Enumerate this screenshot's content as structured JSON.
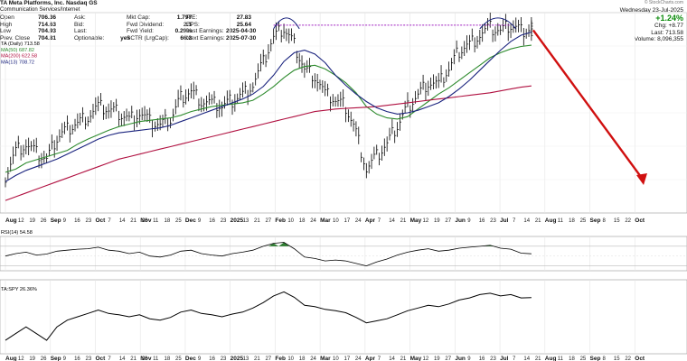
{
  "header": {
    "title": "TA Meta Platforms, Inc. Nasdaq GS",
    "subtitle": "Communication Services/Internet",
    "col1": [
      {
        "k": "Open",
        "v": "706.36"
      },
      {
        "k": "High",
        "v": "714.63"
      },
      {
        "k": "Low",
        "v": "704.93"
      },
      {
        "k": "Prev. Close",
        "v": "704.81"
      }
    ],
    "col2": [
      {
        "k": "Ask:",
        "v": ""
      },
      {
        "k": "Bid:",
        "v": ""
      },
      {
        "k": "Last:",
        "v": ""
      },
      {
        "k": "Optionable:",
        "v": "yes"
      }
    ],
    "col3": [
      {
        "k": "Mkt Cap:",
        "v": "1.797"
      },
      {
        "k": "Fwd Dividend:",
        "v": "2.1"
      },
      {
        "k": "Fwd Yield:",
        "v": "0.29%"
      },
      {
        "k": "SCTR (LrgCap):",
        "v": "66.2"
      }
    ],
    "col4": [
      {
        "k": "P/E:",
        "v": "27.83"
      },
      {
        "k": "EPS:",
        "v": "25.64"
      },
      {
        "k": "Last Earnings:",
        "v": "2025-04-30"
      },
      {
        "k": "Next Earnings:",
        "v": "2025-07-30"
      }
    ],
    "right": {
      "logo": "© StockCharts.com",
      "date": "Wednesday 23-Jul-2025",
      "change_pct": "+1.24%",
      "chg": "Chg: +8.77",
      "last": "Last: 713.58",
      "volume": "Volume: 8,096,355"
    }
  },
  "chart_data": [
    {
      "type": "line",
      "panel": "price",
      "title": "",
      "series": [
        {
          "name": "TA (Daily) 713.58",
          "color": "#000000",
          "x": [
            "2024-08-05",
            "2024-08-12",
            "2024-08-19",
            "2024-08-26",
            "2024-09-03",
            "2024-09-09",
            "2024-09-16",
            "2024-09-23",
            "2024-09-30",
            "2024-10-07",
            "2024-10-14",
            "2024-10-21",
            "2024-10-28",
            "2024-11-04",
            "2024-11-11",
            "2024-11-18",
            "2024-11-25",
            "2024-12-02",
            "2024-12-09",
            "2024-12-16",
            "2024-12-23",
            "2024-12-30",
            "2025-01-06",
            "2025-01-13",
            "2025-01-21",
            "2025-01-27",
            "2025-02-03",
            "2025-02-10",
            "2025-02-18",
            "2025-02-24",
            "2025-03-03",
            "2025-03-10",
            "2025-03-17",
            "2025-03-24",
            "2025-03-31",
            "2025-04-07",
            "2025-04-14",
            "2025-04-21",
            "2025-04-28",
            "2025-05-05",
            "2025-05-12",
            "2025-05-19",
            "2025-05-27",
            "2025-06-02",
            "2025-06-09",
            "2025-06-16",
            "2025-06-23",
            "2025-06-30",
            "2025-07-07",
            "2025-07-14",
            "2025-07-21",
            "2025-07-23"
          ],
          "values": [
            480,
            520,
            530,
            515,
            505,
            540,
            555,
            565,
            575,
            590,
            585,
            580,
            570,
            580,
            565,
            560,
            570,
            605,
            615,
            600,
            595,
            590,
            600,
            610,
            625,
            660,
            700,
            715,
            690,
            650,
            640,
            610,
            600,
            590,
            550,
            490,
            510,
            530,
            560,
            590,
            610,
            630,
            625,
            650,
            680,
            690,
            705,
            715,
            710,
            720,
            712,
            714
          ]
        },
        {
          "name": "MA(50) 687.82",
          "color": "#2e8b2e",
          "values": [
            485,
            490,
            500,
            505,
            510,
            515,
            520,
            530,
            538,
            545,
            552,
            558,
            562,
            566,
            568,
            570,
            572,
            576,
            582,
            586,
            590,
            592,
            594,
            596,
            600,
            610,
            622,
            636,
            648,
            654,
            656,
            650,
            640,
            628,
            612,
            590,
            578,
            572,
            570,
            574,
            586,
            598,
            610,
            620,
            632,
            644,
            656,
            668,
            676,
            682,
            686,
            688
          ]
        },
        {
          "name": "MA(200) 622.58",
          "color": "#b01040",
          "values": [
            440,
            446,
            452,
            458,
            464,
            470,
            476,
            482,
            488,
            494,
            500,
            506,
            510,
            514,
            518,
            522,
            526,
            530,
            534,
            538,
            542,
            546,
            550,
            554,
            558,
            562,
            566,
            570,
            574,
            578,
            582,
            584,
            586,
            587,
            588,
            589,
            590,
            592,
            594,
            596,
            598,
            600,
            602,
            604,
            606,
            608,
            610,
            612,
            615,
            618,
            621,
            623
          ]
        },
        {
          "name": "MA(13) 708.72",
          "color": "#1a237e",
          "values": [
            470,
            480,
            488,
            494,
            500,
            506,
            514,
            522,
            530,
            538,
            544,
            548,
            550,
            552,
            554,
            556,
            560,
            566,
            572,
            578,
            584,
            590,
            596,
            602,
            610,
            622,
            640,
            662,
            676,
            680,
            674,
            660,
            640,
            624,
            610,
            598,
            588,
            582,
            578,
            580,
            584,
            590,
            596,
            606,
            618,
            632,
            648,
            664,
            680,
            694,
            704,
            709
          ]
        }
      ],
      "resistance_line": 720,
      "xlabel": "",
      "ylabel": ""
    },
    {
      "type": "line",
      "panel": "rsi",
      "series": [
        {
          "name": "RSI(14) 54.58",
          "color": "#000000",
          "values": [
            50,
            55,
            58,
            52,
            54,
            60,
            62,
            64,
            65,
            68,
            62,
            60,
            55,
            58,
            50,
            48,
            52,
            60,
            62,
            55,
            52,
            50,
            55,
            58,
            62,
            70,
            76,
            78,
            65,
            48,
            45,
            40,
            42,
            40,
            35,
            30,
            38,
            44,
            52,
            58,
            62,
            65,
            60,
            62,
            66,
            68,
            70,
            72,
            66,
            64,
            56,
            54.58
          ]
        }
      ]
    },
    {
      "type": "line",
      "panel": "relative",
      "series": [
        {
          "name": "TA:SPY 26.36%",
          "color": "#000000",
          "values": [
            20,
            21,
            22,
            21,
            20,
            22,
            23,
            23.5,
            24,
            24.5,
            24,
            23.8,
            23.5,
            23.8,
            23.2,
            23,
            23.4,
            24.2,
            24.5,
            24,
            23.8,
            23.5,
            23.9,
            24.2,
            24.8,
            25.6,
            26.6,
            27.2,
            26.4,
            25.2,
            25,
            24.6,
            24.4,
            24.1,
            23.4,
            22.6,
            22.9,
            23.2,
            23.8,
            24.4,
            24.8,
            25.2,
            25,
            25.4,
            26,
            26.3,
            26.8,
            27,
            26.6,
            26.8,
            26.3,
            26.36
          ]
        }
      ]
    }
  ],
  "axis": {
    "month_labels": [
      "Aug",
      "Sep",
      "Oct",
      "Nov",
      "Dec",
      "2025",
      "Feb",
      "Mar",
      "Apr",
      "May",
      "Jun",
      "Jul",
      "Aug",
      "Sep",
      "Oct"
    ],
    "day_labels": [
      {
        "t": "12",
        "m": 0
      },
      {
        "t": "19",
        "m": 0
      },
      {
        "t": "26",
        "m": 0
      },
      {
        "t": "9",
        "m": 1
      },
      {
        "t": "16",
        "m": 1
      },
      {
        "t": "23",
        "m": 1
      },
      {
        "t": "7",
        "m": 2
      },
      {
        "t": "14",
        "m": 2
      },
      {
        "t": "21",
        "m": 2
      },
      {
        "t": "28",
        "m": 2
      },
      {
        "t": "11",
        "m": 3
      },
      {
        "t": "18",
        "m": 3
      },
      {
        "t": "25",
        "m": 3
      },
      {
        "t": "9",
        "m": 4
      },
      {
        "t": "16",
        "m": 4
      },
      {
        "t": "23",
        "m": 4
      },
      {
        "t": "13",
        "m": 5
      },
      {
        "t": "21",
        "m": 5
      },
      {
        "t": "27",
        "m": 5
      },
      {
        "t": "10",
        "m": 6
      },
      {
        "t": "18",
        "m": 6
      },
      {
        "t": "24",
        "m": 6
      },
      {
        "t": "10",
        "m": 7
      },
      {
        "t": "17",
        "m": 7
      },
      {
        "t": "24",
        "m": 7
      },
      {
        "t": "7",
        "m": 8
      },
      {
        "t": "14",
        "m": 8
      },
      {
        "t": "21",
        "m": 8
      },
      {
        "t": "12",
        "m": 9
      },
      {
        "t": "19",
        "m": 9
      },
      {
        "t": "27",
        "m": 9
      },
      {
        "t": "9",
        "m": 10
      },
      {
        "t": "16",
        "m": 10
      },
      {
        "t": "23",
        "m": 10
      },
      {
        "t": "7",
        "m": 11
      },
      {
        "t": "14",
        "m": 11
      },
      {
        "t": "21",
        "m": 11
      },
      {
        "t": "11",
        "m": 12
      },
      {
        "t": "18",
        "m": 12
      },
      {
        "t": "25",
        "m": 12
      },
      {
        "t": "8",
        "m": 13
      },
      {
        "t": "15",
        "m": 13
      },
      {
        "t": "22",
        "m": 13
      }
    ]
  },
  "colors": {
    "annotation": "#d01010",
    "resistance": "#a020c0",
    "arc": "#1a237e",
    "rsi_fill": "#2e7d32"
  }
}
